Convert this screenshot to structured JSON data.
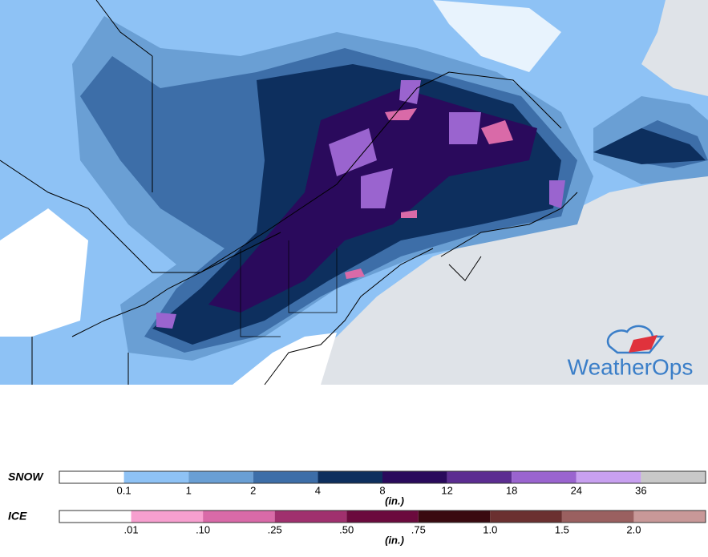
{
  "logo": "WeatherOps",
  "legends": [
    {
      "title": "SNOW",
      "units": "(in.)",
      "labels": [
        "0.1",
        "1",
        "2",
        "4",
        "8",
        "12",
        "18",
        "24",
        "36"
      ],
      "colors": [
        "#ffffff",
        "#8ec2f5",
        "#6a9fd4",
        "#3d6ea8",
        "#0d2f5e",
        "#2a0a5c",
        "#5c2d91",
        "#9a64cf",
        "#c8a0f0",
        "#c8c8c8"
      ]
    },
    {
      "title": "ICE",
      "units": "(in.)",
      "labels": [
        ".01",
        ".10",
        ".25",
        ".50",
        ".75",
        "1.0",
        "1.5",
        "2.0"
      ],
      "colors": [
        "#ffffff",
        "#f79fcf",
        "#d96aa8",
        "#a0306e",
        "#6b0a3d",
        "#3a0a10",
        "#6b3030",
        "#9a6060",
        "#c89898"
      ]
    }
  ]
}
